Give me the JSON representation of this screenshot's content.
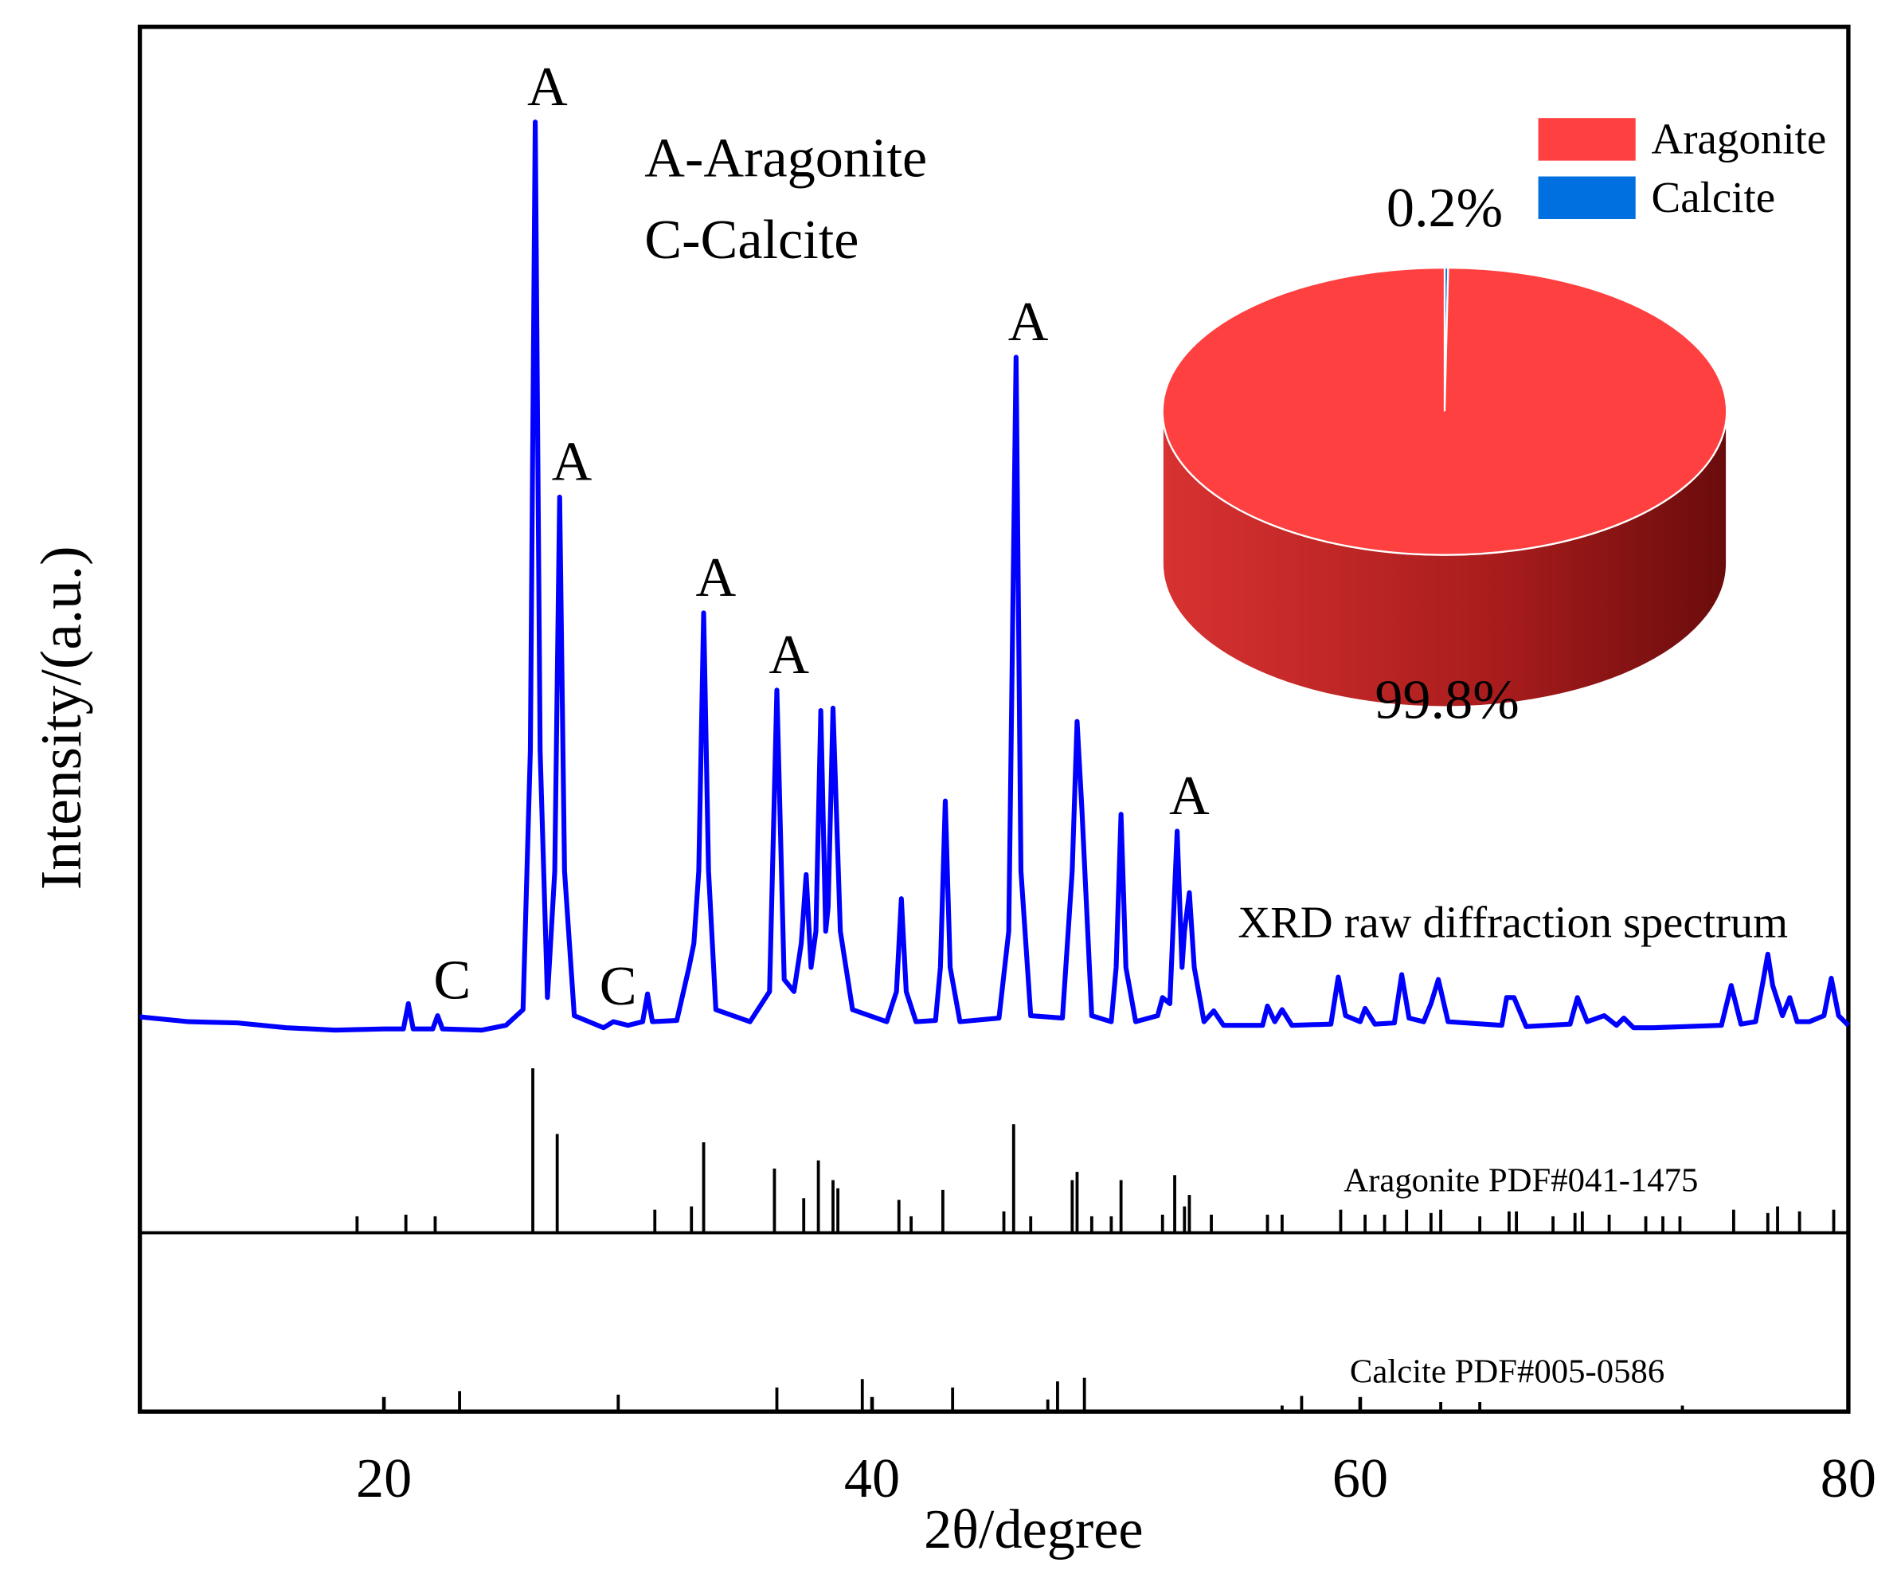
{
  "chart_data": [
    {
      "type": "line",
      "xlabel": "2θ/degree",
      "ylabel": "Intensity/(a.u.)",
      "xlim": [
        10,
        80
      ],
      "xticks": [
        20,
        40,
        60,
        80
      ],
      "ylim": [
        0,
        100
      ],
      "key": [
        "A-Aragonite",
        "C-Calcite"
      ],
      "annotations": [
        {
          "text": "A",
          "x": 26.2
        },
        {
          "text": "A",
          "x": 27.2
        },
        {
          "text": "A",
          "x": 33.1
        },
        {
          "text": "A",
          "x": 36.1
        },
        {
          "text": "A",
          "x": 45.9
        },
        {
          "text": "A",
          "x": 52.5
        },
        {
          "text": "C",
          "x": 22.3
        },
        {
          "text": "C",
          "x": 29.1
        }
      ],
      "x": [
        10,
        12,
        14,
        16,
        18,
        20,
        20.8,
        21.0,
        21.2,
        22.0,
        22.2,
        22.4,
        24,
        25,
        25.7,
        26.0,
        26.2,
        26.4,
        26.7,
        27.0,
        27.2,
        27.4,
        27.8,
        29,
        29.4,
        30,
        30.6,
        30.8,
        31.0,
        32,
        32.5,
        32.7,
        32.9,
        33.1,
        33.3,
        33.6,
        35,
        35.8,
        36.1,
        36.4,
        36.8,
        37.1,
        37.3,
        37.5,
        37.7,
        37.9,
        38.1,
        38.2,
        38.4,
        38.7,
        39.2,
        40.6,
        41.0,
        41.2,
        41.4,
        41.8,
        42.6,
        42.8,
        43.0,
        43.2,
        43.6,
        45.2,
        45.6,
        45.9,
        46.1,
        46.5,
        47.8,
        48.2,
        48.4,
        48.6,
        49.0,
        49.8,
        50.0,
        50.2,
        50.4,
        50.8,
        51.7,
        51.9,
        52.2,
        52.5,
        52.7,
        52.8,
        53.0,
        53.2,
        53.6,
        54.0,
        54.4,
        56,
        56.2,
        56.5,
        56.8,
        57.2,
        58.8,
        59.1,
        59.4,
        60.0,
        60.2,
        60.6,
        61.4,
        61.7,
        62.0,
        62.6,
        62.9,
        63.2,
        63.6,
        65.8,
        66.0,
        66.3,
        66.8,
        68.6,
        68.9,
        69.3,
        70,
        70.5,
        70.8,
        71.2,
        72,
        74.8,
        75.2,
        75.6,
        76.2,
        76.5,
        76.7,
        76.9,
        77.3,
        77.6,
        77.9,
        78.4,
        79.0,
        79.3,
        79.6,
        80
      ],
      "series": [
        {
          "name": "XRD raw diffraction spectrum",
          "color": "#0000ff",
          "values": [
            17.9,
            17.5,
            17.4,
            17.0,
            16.8,
            16.9,
            16.9,
            19.0,
            16.9,
            16.9,
            18.0,
            16.9,
            16.8,
            17.2,
            18.5,
            40,
            92.1,
            40,
            19.5,
            30,
            61.0,
            30,
            18,
            17.0,
            17.5,
            17.2,
            17.5,
            19.8,
            17.5,
            17.6,
            22,
            24.0,
            30,
            51.4,
            30,
            18.5,
            17.5,
            20,
            45.0,
            21,
            20,
            24,
            29.7,
            22,
            25,
            43.3,
            25,
            27,
            43.5,
            25,
            18.5,
            17.5,
            20,
            27.7,
            20,
            17.5,
            17.6,
            22,
            35.8,
            22,
            17.5,
            17.8,
            25,
            72.6,
            30,
            18,
            17.8,
            30,
            42.4,
            35,
            18,
            17.5,
            22,
            34.7,
            22,
            17.5,
            18,
            19.5,
            19,
            33.3,
            22,
            25,
            28.2,
            22,
            17.5,
            18.4,
            17.2,
            17.2,
            18.8,
            17.5,
            18.5,
            17.2,
            17.3,
            21.2,
            18,
            17.5,
            18.6,
            17.3,
            17.4,
            21.4,
            17.8,
            17.5,
            19,
            21.0,
            17.5,
            17.2,
            19.5,
            19.5,
            17.1,
            17.3,
            19.5,
            17.5,
            18,
            17.2,
            17.8,
            17,
            17,
            17.2,
            20.5,
            17.3,
            17.5,
            20.8,
            23.1,
            20.5,
            18,
            19.5,
            17.5,
            17.5,
            18,
            21.1,
            18,
            17.2
          ]
        }
      ]
    },
    {
      "type": "stem",
      "xlim": [
        10,
        80
      ],
      "ylim": [
        0,
        111
      ],
      "x": [
        18.9,
        20.9,
        22.1,
        26.1,
        27.1,
        31.1,
        32.6,
        33.1,
        36.0,
        37.2,
        37.8,
        38.4,
        38.6,
        41.1,
        41.6,
        42.9,
        45.4,
        45.8,
        46.5,
        48.2,
        48.4,
        49.0,
        49.8,
        50.2,
        51.9,
        52.4,
        52.8,
        53.0,
        53.9,
        56.2,
        56.8,
        59.2,
        60.2,
        61.0,
        61.9,
        62.9,
        63.3,
        64.9,
        66.1,
        66.4,
        67.9,
        68.8,
        69.1,
        70.2,
        71.7,
        72.4,
        73.1,
        75.3,
        76.7,
        77.1,
        78.0,
        79.4
      ],
      "series": [
        {
          "name": "Aragonite PDF#041-1475",
          "color": "#000000",
          "values": [
            10,
            11,
            10,
            100,
            60,
            14,
            16,
            55,
            39,
            21,
            44,
            32,
            27,
            20,
            10,
            26,
            13,
            66,
            10,
            32,
            37,
            10,
            10,
            32,
            11,
            35,
            16,
            23,
            11,
            11,
            11,
            14,
            11,
            11,
            14,
            12,
            14,
            10,
            13,
            13,
            10,
            12,
            13,
            11,
            10,
            10,
            10,
            14,
            12,
            16,
            13,
            14
          ]
        }
      ]
    },
    {
      "type": "stem",
      "xlim": [
        10,
        80
      ],
      "ylim": [
        0,
        100
      ],
      "x": [
        23.1,
        29.6,
        36.1,
        39.6,
        43.3,
        47.2,
        47.6,
        48.7,
        56.8,
        57.6,
        63.3,
        64.9,
        73.2
      ],
      "series": [
        {
          "name": "Calcite PDF#005-0586",
          "color": "#000000",
          "values": [
            11.5,
            9.5,
            13.5,
            18.2,
            13.5,
            6.8,
            16.9,
            18.9,
            3.4,
            8.8,
            5.4,
            5.4,
            3.4
          ]
        }
      ]
    },
    {
      "type": "pie",
      "categories": [
        "Aragonite",
        "Calcite"
      ],
      "values": [
        99.8,
        0.2
      ],
      "value_labels": [
        "99.8%",
        "0.2%"
      ],
      "colors": [
        "#ff4040",
        "#0070e0"
      ]
    }
  ]
}
